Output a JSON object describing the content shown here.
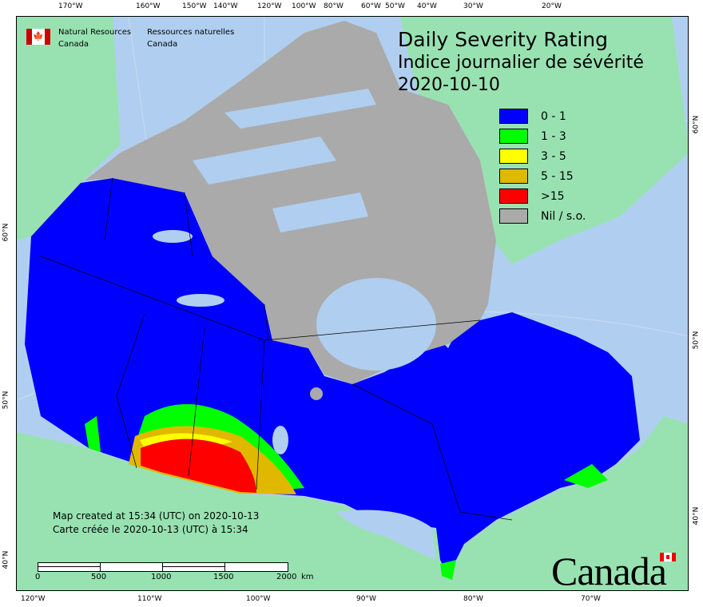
{
  "title": {
    "en": "Daily Severity Rating",
    "fr": "Indice journalier de sévérité",
    "date": "2020-10-10"
  },
  "agency": {
    "en_line1": "Natural Resources",
    "en_line2": "Canada",
    "fr_line1": "Ressources naturelles",
    "fr_line2": "Canada"
  },
  "legend": [
    {
      "label": "0 - 1",
      "color": "#0000ff"
    },
    {
      "label": "1 - 3",
      "color": "#00ff00"
    },
    {
      "label": "3 - 5",
      "color": "#ffff00"
    },
    {
      "label": "5 - 15",
      "color": "#e0b800"
    },
    {
      "label": ">15",
      "color": "#ff0000"
    },
    {
      "label": "Nil / s.o.",
      "color": "#aaaaaa"
    }
  ],
  "created": {
    "en": "Map created at 15:34 (UTC) on 2020-10-13",
    "fr": "Carte créée le 2020-10-13 (UTC) à 15:34"
  },
  "scale_bar": {
    "labels": [
      "0",
      "500",
      "1000",
      "1500",
      "2000"
    ],
    "unit": "km"
  },
  "top_longitudes": [
    "170°W",
    "160°W",
    "150°W",
    "140°W",
    "120°W",
    "100°W",
    "80°W",
    "60°W",
    "50°W",
    "40°W",
    "30°W",
    "20°W"
  ],
  "bottom_longitudes": [
    "120°W",
    "110°W",
    "100°W",
    "90°W",
    "80°W",
    "70°W"
  ],
  "left_latitudes": [
    "60°N",
    "50°N",
    "40°N"
  ],
  "right_latitudes": [
    "60°N",
    "50°N",
    "40°N"
  ],
  "wordmark": "Canada",
  "colors": {
    "water": "#b0cff0",
    "land": "#98e2b2"
  }
}
